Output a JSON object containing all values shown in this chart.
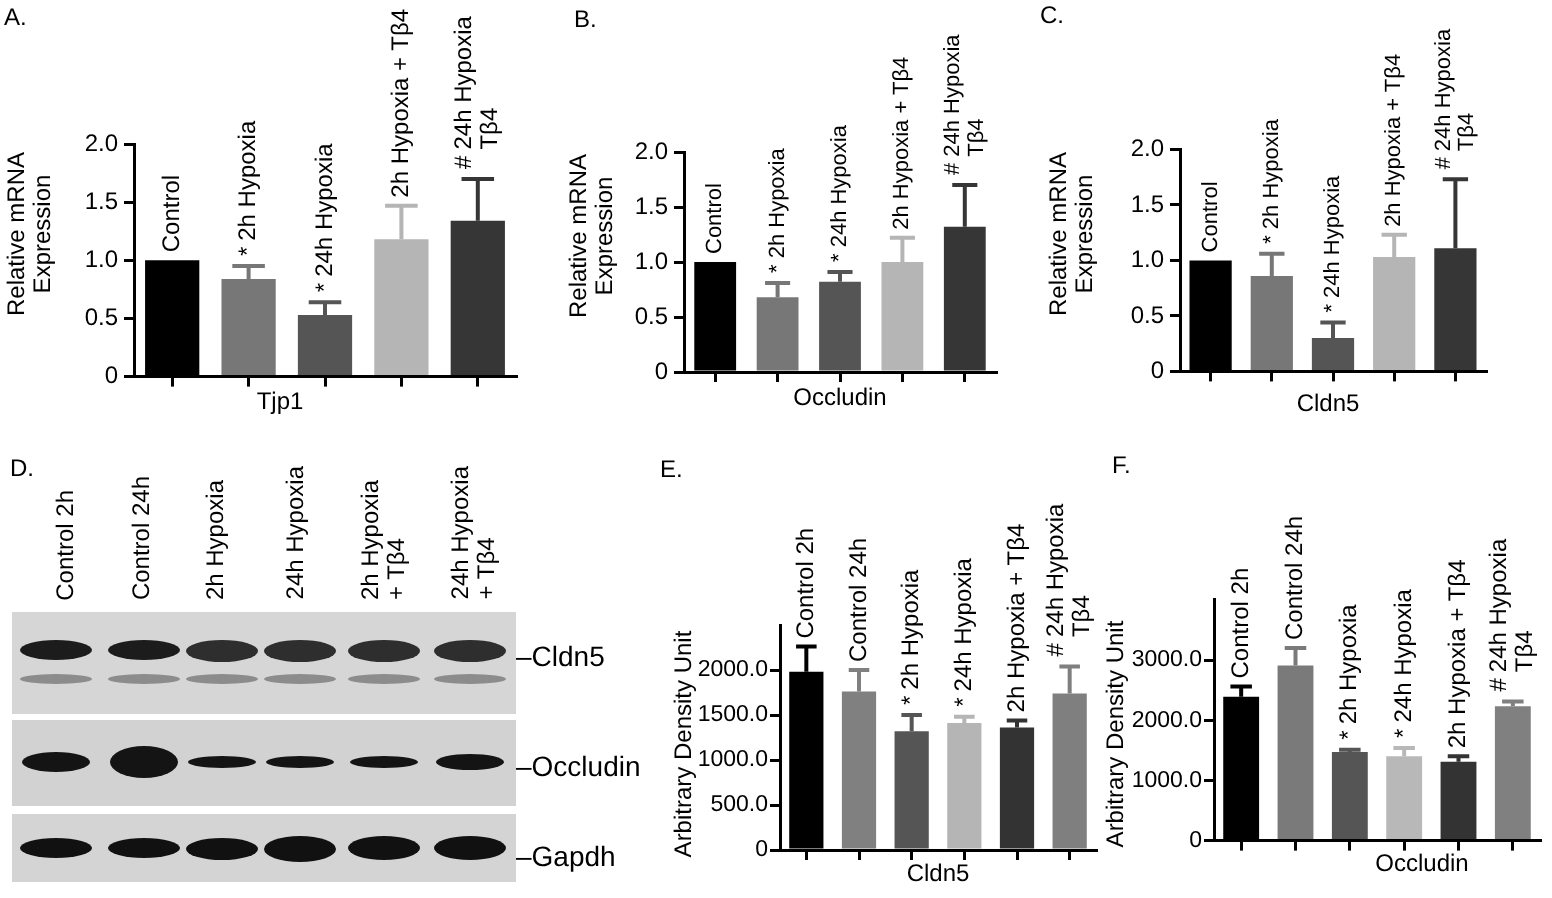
{
  "chart_data": [
    {
      "type": "bar",
      "title": "A.",
      "ylabel": "Relative mRNA\nExpression",
      "xlabel": "Tjp1",
      "categories": [
        "Control",
        "2h Hypoxia",
        "24h Hypoxia",
        "2h Hypoxia + Tβ4",
        "24h Hypoxia\nTβ4"
      ],
      "values": [
        1.0,
        0.84,
        0.53,
        1.18,
        1.34
      ],
      "colors": [
        "#000000",
        "#777777",
        "#555555",
        "#b5b5b5",
        "#363636"
      ],
      "errors": [
        null,
        [
          0.84,
          0.95
        ],
        [
          0.53,
          0.64
        ],
        [
          1.18,
          1.47
        ],
        [
          1.34,
          1.7
        ]
      ],
      "ylim": [
        0,
        2
      ],
      "yticks": [
        0,
        0.5,
        {
          "value": 1,
          "label": "1.0"
        },
        1.5,
        {
          "value": 2,
          "label": "2.0"
        }
      ],
      "annotations": [
        {
          "text": "*",
          "x": "2h Hypoxia",
          "y": 0.95
        },
        {
          "text": "*",
          "x": "24h Hypoxia",
          "y": 0.64
        },
        {
          "text": "#",
          "x": "24h Hypoxia\nTβ4",
          "y": 1.7
        }
      ]
    },
    {
      "type": "bar",
      "title": "B.",
      "ylabel": "Relative mRNA\nExpression",
      "xlabel": "Occludin",
      "categories": [
        "Control",
        "2h Hypoxia",
        "24h Hypoxia",
        "2h Hypoxia + Tβ4",
        "24h Hypoxia\nTβ4"
      ],
      "values": [
        1.0,
        0.68,
        0.82,
        1.0,
        1.32
      ],
      "colors": [
        "#000000",
        "#777777",
        "#555555",
        "#b5b5b5",
        "#363636"
      ],
      "errors": [
        null,
        [
          0.68,
          0.81
        ],
        [
          0.82,
          0.91
        ],
        [
          1.0,
          1.22
        ],
        [
          1.32,
          1.7
        ]
      ],
      "ylim": [
        0,
        2
      ],
      "yticks": [
        0,
        0.5,
        {
          "value": 1,
          "label": "1.0"
        },
        1.5,
        {
          "value": 2,
          "label": "2.0"
        }
      ],
      "annotations": [
        {
          "text": "*",
          "x": "2h Hypoxia",
          "y": 0.81
        },
        {
          "text": "*",
          "x": "24h Hypoxia",
          "y": 0.91
        },
        {
          "text": "#",
          "x": "24h Hypoxia\nTβ4",
          "y": 1.7
        }
      ]
    },
    {
      "type": "bar",
      "title": "C.",
      "ylabel": "Relative mRNA\nExpression",
      "xlabel": "Cldn5",
      "categories": [
        "Control",
        "2h Hypoxia",
        "24h Hypoxia",
        "2h Hypoxia + Tβ4",
        "24h Hypoxia\nTβ4"
      ],
      "values": [
        1.0,
        0.86,
        0.3,
        1.03,
        1.11
      ],
      "colors": [
        "#000000",
        "#777777",
        "#555555",
        "#b5b5b5",
        "#363636"
      ],
      "errors": [
        null,
        [
          0.86,
          1.06
        ],
        [
          0.3,
          0.44
        ],
        [
          1.03,
          1.23
        ],
        [
          1.11,
          1.73
        ]
      ],
      "ylim": [
        0,
        2
      ],
      "yticks": [
        0,
        0.5,
        {
          "value": 1,
          "label": "1.0"
        },
        1.5,
        {
          "value": 2,
          "label": "2.0"
        }
      ],
      "annotations": [
        {
          "text": "*",
          "x": "2h Hypoxia",
          "y": 1.06
        },
        {
          "text": "*",
          "x": "24h Hypoxia",
          "y": 0.44
        },
        {
          "text": "#",
          "x": "24h Hypoxia\nTβ4",
          "y": 1.73
        }
      ]
    },
    {
      "type": "other",
      "title": "D.",
      "categories": [
        "Control 2h",
        "Control 24h",
        "2h Hypoxia",
        "24h Hypoxia",
        "2h Hypoxia\n+ Tβ4",
        "24h Hypoxia\n+ Tβ4"
      ],
      "annotations": [
        "–Cldn5",
        "–Occludin",
        "–Gapdh"
      ]
    },
    {
      "type": "bar",
      "title": "E.",
      "ylabel": "Arbitrary Density Unit",
      "xlabel": "Cldn5",
      "categories": [
        "Control 2h",
        "Control 24h",
        "2h Hypoxia",
        "24h Hypoxia",
        "2h Hypoxia + Tβ4",
        "24h Hypoxia\nTβ4"
      ],
      "values": [
        1980,
        1760,
        1320,
        1410,
        1360,
        1740
      ],
      "colors": [
        "#000000",
        "#808080",
        "#555555",
        "#b5b5b5",
        "#333333",
        "#7f7f7f"
      ],
      "errors": [
        [
          1980,
          2260
        ],
        [
          1760,
          2000
        ],
        [
          1320,
          1500
        ],
        [
          1410,
          1480
        ],
        [
          1360,
          1440
        ],
        [
          1740,
          2040
        ]
      ],
      "ylim": [
        0,
        2500
      ],
      "yticks": [
        0,
        {
          "value": 500,
          "label": "500.0"
        },
        {
          "value": 1000,
          "label": "1000.0"
        },
        {
          "value": 1500,
          "label": "1500.0"
        },
        {
          "value": 2000,
          "label": "2000.0"
        }
      ],
      "annotations": [
        {
          "text": "*",
          "x": "2h Hypoxia",
          "y": 1500
        },
        {
          "text": "*",
          "x": "24h Hypoxia",
          "y": 1480
        },
        {
          "text": "#",
          "x": "24h Hypoxia\nTβ4",
          "y": 2040
        }
      ]
    },
    {
      "type": "bar",
      "title": "F.",
      "ylabel": "Arbitrary Density Unit",
      "xlabel": "Occludin",
      "categories": [
        "Control 2h",
        "Control 24h",
        "2h Hypoxia",
        "24h Hypoxia",
        "2h Hypoxia + Tβ4",
        "24h Hypoxia\nTβ4"
      ],
      "values": [
        2390,
        2910,
        1470,
        1400,
        1310,
        2230
      ],
      "colors": [
        "#000000",
        "#7a7a7a",
        "#555555",
        "#b8b8b8",
        "#333333",
        "#808080"
      ],
      "errors": [
        [
          2390,
          2560
        ],
        [
          2910,
          3200
        ],
        [
          1470,
          1510
        ],
        [
          1400,
          1540
        ],
        [
          1310,
          1400
        ],
        [
          2230,
          2310
        ]
      ],
      "ylim": [
        0,
        4000
      ],
      "yticks": [
        0,
        {
          "value": 1000,
          "label": "1000.0"
        },
        {
          "value": 2000,
          "label": "2000.0"
        },
        {
          "value": 3000,
          "label": "3000.0"
        }
      ],
      "annotations": [
        {
          "text": "*",
          "x": "2h Hypoxia",
          "y": 1510
        },
        {
          "text": "*",
          "x": "24h Hypoxia",
          "y": 1540
        },
        {
          "text": "#",
          "x": "24h Hypoxia\nTβ4",
          "y": 2310
        }
      ]
    }
  ]
}
